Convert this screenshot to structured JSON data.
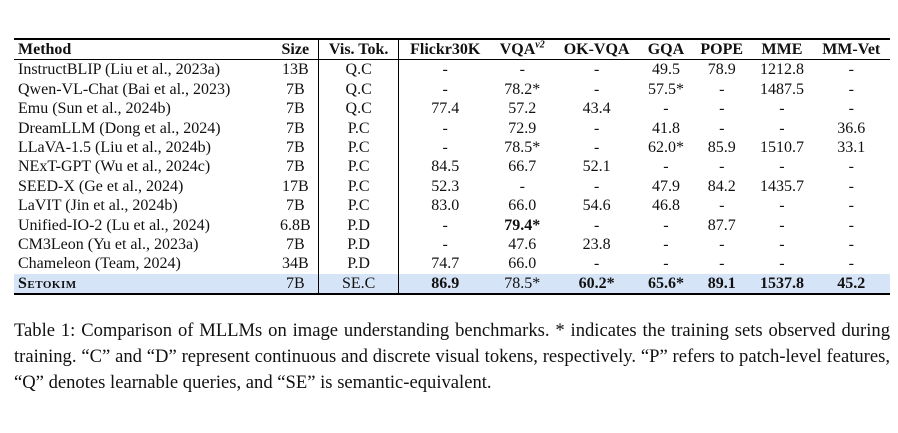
{
  "table": {
    "headers": {
      "method": "Method",
      "size": "Size",
      "vis_tok": "Vis. Tok.",
      "flickr": "Flickr30K",
      "vqa": "VQA",
      "vqa_sup": "v2",
      "okvqa": "OK-VQA",
      "gqa": "GQA",
      "pope": "POPE",
      "mme": "MME",
      "mmvet": "MM-Vet"
    },
    "rows": [
      {
        "method": "InstructBLIP (Liu et al., 2023a)",
        "size": "13B",
        "vistok": "Q.C",
        "flickr": "-",
        "vqa": "-",
        "okvqa": "-",
        "gqa": "49.5",
        "pope": "78.9",
        "mme": "1212.8",
        "mmvet": "-"
      },
      {
        "method": "Qwen-VL-Chat (Bai et al., 2023)",
        "size": "7B",
        "vistok": "Q.C",
        "flickr": "-",
        "vqa": "78.2*",
        "okvqa": "-",
        "gqa": "57.5*",
        "pope": "-",
        "mme": "1487.5",
        "mmvet": "-"
      },
      {
        "method": "Emu (Sun et al., 2024b)",
        "size": "7B",
        "vistok": "Q.C",
        "flickr": "77.4",
        "vqa": "57.2",
        "okvqa": "43.4",
        "gqa": "-",
        "pope": "-",
        "mme": "-",
        "mmvet": "-"
      },
      {
        "method": "DreamLLM (Dong et al., 2024)",
        "size": "7B",
        "vistok": "P.C",
        "flickr": "-",
        "vqa": "72.9",
        "okvqa": "-",
        "gqa": "41.8",
        "pope": "-",
        "mme": "-",
        "mmvet": "36.6"
      },
      {
        "method": "LLaVA-1.5 (Liu et al., 2024b)",
        "size": "7B",
        "vistok": "P.C",
        "flickr": "-",
        "vqa": "78.5*",
        "okvqa": "-",
        "gqa": "62.0*",
        "pope": "85.9",
        "mme": "1510.7",
        "mmvet": "33.1"
      },
      {
        "method": "NExT-GPT (Wu et al., 2024c)",
        "size": "7B",
        "vistok": "P.C",
        "flickr": "84.5",
        "vqa": "66.7",
        "okvqa": "52.1",
        "gqa": "-",
        "pope": "-",
        "mme": "-",
        "mmvet": "-"
      },
      {
        "method": "SEED-X (Ge et al., 2024)",
        "size": "17B",
        "vistok": "P.C",
        "flickr": "52.3",
        "vqa": "-",
        "okvqa": "-",
        "gqa": "47.9",
        "pope": "84.2",
        "mme": "1435.7",
        "mmvet": "-"
      },
      {
        "method": "LaVIT (Jin et al., 2024b)",
        "size": "7B",
        "vistok": "P.C",
        "flickr": "83.0",
        "vqa": "66.0",
        "okvqa": "54.6",
        "gqa": "46.8",
        "pope": "-",
        "mme": "-",
        "mmvet": "-"
      },
      {
        "method": "Unified-IO-2 (Lu et al., 2024)",
        "size": "6.8B",
        "vistok": "P.D",
        "flickr": "-",
        "vqa": "79.4*",
        "okvqa": "-",
        "gqa": "-",
        "pope": "87.7",
        "mme": "-",
        "mmvet": "-"
      },
      {
        "method": "CM3Leon (Yu et al., 2023a)",
        "size": "7B",
        "vistok": "P.D",
        "flickr": "-",
        "vqa": "47.6",
        "okvqa": "23.8",
        "gqa": "-",
        "pope": "-",
        "mme": "-",
        "mmvet": "-"
      },
      {
        "method": "Chameleon (Team, 2024)",
        "size": "34B",
        "vistok": "P.D",
        "flickr": "74.7",
        "vqa": "66.0",
        "okvqa": "-",
        "gqa": "-",
        "pope": "-",
        "mme": "-",
        "mmvet": "-"
      },
      {
        "method": "Setokim",
        "size": "7B",
        "vistok": "SE.C",
        "flickr": "86.9",
        "vqa": "78.5*",
        "okvqa": "60.2*",
        "gqa": "65.6*",
        "pope": "89.1",
        "mme": "1537.8",
        "mmvet": "45.2"
      }
    ]
  },
  "caption": "Table 1: Comparison of MLLMs on image understanding benchmarks. * indicates the training sets observed during training. “C” and “D” represent continuous and discrete visual tokens, respectively. “P” refers to patch-level features, “Q” denotes learnable queries, and “SE” is semantic-equivalent.",
  "colors": {
    "highlight_row": "#d6e4f8",
    "rule": "#000000"
  }
}
